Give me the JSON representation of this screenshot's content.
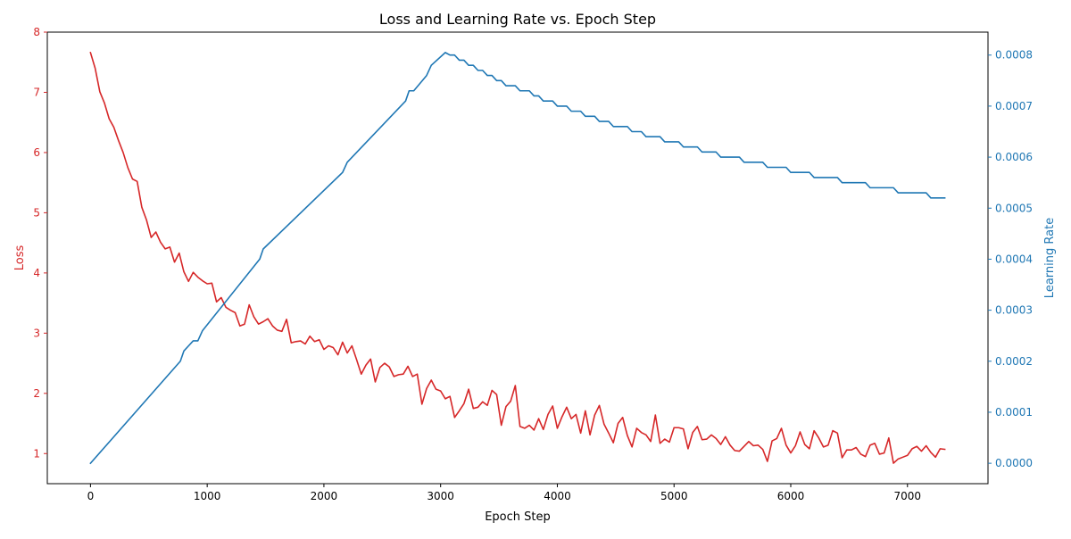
{
  "chart_data": {
    "type": "line",
    "title": "Loss and Learning Rate vs. Epoch Step",
    "xlabel": "Epoch Step",
    "ylabel_left": "Loss",
    "ylabel_right": "Learning Rate",
    "xlim": [
      -370,
      7690
    ],
    "ylim_left": [
      0.5,
      8.0
    ],
    "ylim_right": [
      -4e-05,
      0.000845
    ],
    "x_ticks": [
      0,
      1000,
      2000,
      3000,
      4000,
      5000,
      6000,
      7000
    ],
    "x_tick_labels": [
      "0",
      "1000",
      "2000",
      "3000",
      "4000",
      "5000",
      "6000",
      "7000"
    ],
    "left_ticks": [
      1,
      2,
      3,
      4,
      5,
      6,
      7,
      8
    ],
    "left_tick_labels": [
      "1",
      "2",
      "3",
      "4",
      "5",
      "6",
      "7",
      "8"
    ],
    "right_ticks": [
      0.0,
      0.0001,
      0.0002,
      0.0003,
      0.0004,
      0.0005,
      0.0006,
      0.0007,
      0.0008
    ],
    "right_tick_labels": [
      "0.0000",
      "0.0001",
      "0.0002",
      "0.0003",
      "0.0004",
      "0.0005",
      "0.0006",
      "0.0007",
      "0.0008"
    ],
    "grid": false,
    "colors": {
      "loss": "#d62728",
      "lr": "#1f77b4",
      "text": "#000000"
    },
    "series": [
      {
        "axis": "left",
        "color": "#d62728",
        "x": [
          0,
          40,
          80,
          120,
          160,
          200,
          240,
          280,
          320,
          360,
          400,
          440,
          480,
          520,
          560,
          600,
          640,
          680,
          720,
          760,
          800,
          840,
          880,
          920,
          960,
          1000,
          1040,
          1080,
          1120,
          1160,
          1200,
          1240,
          1280,
          1320,
          1360,
          1400,
          1440,
          1480,
          1520,
          1560,
          1600,
          1640,
          1680,
          1720,
          1760,
          1800,
          1840,
          1880,
          1920,
          1960,
          2000,
          2040,
          2080,
          2120,
          2160,
          2200,
          2240,
          2280,
          2320,
          2360,
          2400,
          2440,
          2480,
          2520,
          2560,
          2600,
          2640,
          2680,
          2720,
          2760,
          2800,
          2840,
          2880,
          2920,
          2960,
          3000,
          3040,
          3080,
          3120,
          3160,
          3200,
          3240,
          3280,
          3320,
          3360,
          3400,
          3440,
          3480,
          3520,
          3560,
          3600,
          3640,
          3680,
          3720,
          3760,
          3800,
          3840,
          3880,
          3920,
          3960,
          4000,
          4040,
          4080,
          4120,
          4160,
          4200,
          4240,
          4280,
          4320,
          4360,
          4400,
          4440,
          4480,
          4520,
          4560,
          4600,
          4640,
          4680,
          4720,
          4760,
          4800,
          4840,
          4880,
          4920,
          4960,
          5000,
          5040,
          5080,
          5120,
          5160,
          5200,
          5240,
          5280,
          5320,
          5360,
          5400,
          5440,
          5480,
          5520,
          5560,
          5600,
          5640,
          5680,
          5720,
          5760,
          5800,
          5840,
          5880,
          5920,
          5960,
          6000,
          6040,
          6080,
          6120,
          6160,
          6200,
          6240,
          6280,
          6320,
          6360,
          6400,
          6440,
          6480,
          6520,
          6560,
          6600,
          6640,
          6680,
          6720,
          6760,
          6800,
          6840,
          6880,
          6920,
          6960,
          7000,
          7040,
          7080,
          7120,
          7160,
          7200,
          7240,
          7280,
          7320
        ],
        "values": [
          7.66,
          7.4,
          7.01,
          6.82,
          6.56,
          6.42,
          6.2,
          6.0,
          5.75,
          5.56,
          5.52,
          5.09,
          4.88,
          4.59,
          4.68,
          4.51,
          4.4,
          4.43,
          4.18,
          4.33,
          4.02,
          3.86,
          4.01,
          3.93,
          3.87,
          3.82,
          3.83,
          3.52,
          3.59,
          3.43,
          3.38,
          3.34,
          3.12,
          3.15,
          3.47,
          3.27,
          3.15,
          3.19,
          3.24,
          3.12,
          3.05,
          3.03,
          3.23,
          2.84,
          2.86,
          2.87,
          2.82,
          2.95,
          2.86,
          2.89,
          2.73,
          2.79,
          2.76,
          2.64,
          2.85,
          2.67,
          2.79,
          2.56,
          2.32,
          2.47,
          2.57,
          2.19,
          2.43,
          2.5,
          2.44,
          2.28,
          2.31,
          2.32,
          2.45,
          2.28,
          2.32,
          1.82,
          2.08,
          2.22,
          2.07,
          2.04,
          1.91,
          1.95,
          1.6,
          1.71,
          1.83,
          2.07,
          1.75,
          1.77,
          1.86,
          1.8,
          2.05,
          1.98,
          1.47,
          1.78,
          1.87,
          2.13,
          1.45,
          1.42,
          1.47,
          1.39,
          1.58,
          1.4,
          1.65,
          1.79,
          1.42,
          1.61,
          1.77,
          1.58,
          1.65,
          1.34,
          1.71,
          1.31,
          1.64,
          1.8,
          1.49,
          1.34,
          1.18,
          1.5,
          1.6,
          1.3,
          1.11,
          1.42,
          1.35,
          1.31,
          1.2,
          1.64,
          1.17,
          1.24,
          1.19,
          1.43,
          1.43,
          1.41,
          1.08,
          1.35,
          1.45,
          1.23,
          1.24,
          1.31,
          1.25,
          1.15,
          1.28,
          1.14,
          1.05,
          1.04,
          1.12,
          1.2,
          1.13,
          1.14,
          1.07,
          0.87,
          1.21,
          1.25,
          1.42,
          1.14,
          1.01,
          1.13,
          1.36,
          1.15,
          1.08,
          1.38,
          1.26,
          1.11,
          1.14,
          1.38,
          1.34,
          0.93,
          1.06,
          1.06,
          1.1,
          0.99,
          0.95,
          1.14,
          1.17,
          0.99,
          1.01,
          1.26,
          0.84,
          0.91,
          0.94,
          0.97,
          1.08,
          1.12,
          1.04,
          1.13,
          1.02,
          0.94,
          1.08,
          1.07
        ]
      },
      {
        "axis": "right",
        "color": "#1f77b4",
        "x": [
          0,
          770,
          800,
          840,
          880,
          920,
          960,
          1450,
          1480,
          2160,
          2200,
          2700,
          2730,
          2770,
          2880,
          2920,
          3040,
          3080,
          3120,
          3160,
          3200,
          3240,
          3280,
          3320,
          3360,
          3400,
          3440,
          3480,
          3520,
          3560,
          3600,
          3640,
          3680,
          3720,
          3760,
          3800,
          3840,
          3880,
          3920,
          3960,
          4000,
          4040,
          4080,
          4120,
          4160,
          4200,
          4240,
          4280,
          4320,
          4360,
          4400,
          4440,
          4480,
          4520,
          4560,
          4600,
          4640,
          4680,
          4720,
          4760,
          4800,
          4840,
          4880,
          4920,
          4960,
          5000,
          5040,
          5080,
          5120,
          5160,
          5200,
          5240,
          5280,
          5320,
          5360,
          5400,
          5440,
          5480,
          5520,
          5560,
          5600,
          5640,
          5680,
          5720,
          5760,
          5800,
          5840,
          5880,
          5920,
          5960,
          6000,
          6040,
          6080,
          6120,
          6160,
          6200,
          6240,
          6280,
          6320,
          6360,
          6400,
          6440,
          6480,
          6520,
          6560,
          6600,
          6640,
          6680,
          6720,
          6760,
          6800,
          6840,
          6880,
          6920,
          6960,
          7000,
          7040,
          7080,
          7120,
          7160,
          7200,
          7240,
          7280,
          7320
        ],
        "values": [
          0.0,
          0.0002,
          0.00022,
          0.00023,
          0.00024,
          0.00024,
          0.00026,
          0.0004,
          0.00042,
          0.00057,
          0.00059,
          0.00071,
          0.00073,
          0.00073,
          0.00076,
          0.00078,
          0.000805,
          0.0008,
          0.0008,
          0.00079,
          0.00079,
          0.00078,
          0.00078,
          0.00077,
          0.00077,
          0.00076,
          0.00076,
          0.00075,
          0.00075,
          0.00074,
          0.00074,
          0.00074,
          0.00073,
          0.00073,
          0.00073,
          0.00072,
          0.00072,
          0.00071,
          0.00071,
          0.00071,
          0.0007,
          0.0007,
          0.0007,
          0.00069,
          0.00069,
          0.00069,
          0.00068,
          0.00068,
          0.00068,
          0.00067,
          0.00067,
          0.00067,
          0.00066,
          0.00066,
          0.00066,
          0.00066,
          0.00065,
          0.00065,
          0.00065,
          0.00064,
          0.00064,
          0.00064,
          0.00064,
          0.00063,
          0.00063,
          0.00063,
          0.00063,
          0.00062,
          0.00062,
          0.00062,
          0.00062,
          0.00061,
          0.00061,
          0.00061,
          0.00061,
          0.0006,
          0.0006,
          0.0006,
          0.0006,
          0.0006,
          0.00059,
          0.00059,
          0.00059,
          0.00059,
          0.00059,
          0.00058,
          0.00058,
          0.00058,
          0.00058,
          0.00058,
          0.00057,
          0.00057,
          0.00057,
          0.00057,
          0.00057,
          0.00056,
          0.00056,
          0.00056,
          0.00056,
          0.00056,
          0.00056,
          0.00055,
          0.00055,
          0.00055,
          0.00055,
          0.00055,
          0.00055,
          0.00054,
          0.00054,
          0.00054,
          0.00054,
          0.00054,
          0.00054,
          0.00053,
          0.00053,
          0.00053,
          0.00053,
          0.00053,
          0.00053,
          0.00053,
          0.00052,
          0.00052,
          0.00052,
          0.00052
        ]
      }
    ]
  }
}
